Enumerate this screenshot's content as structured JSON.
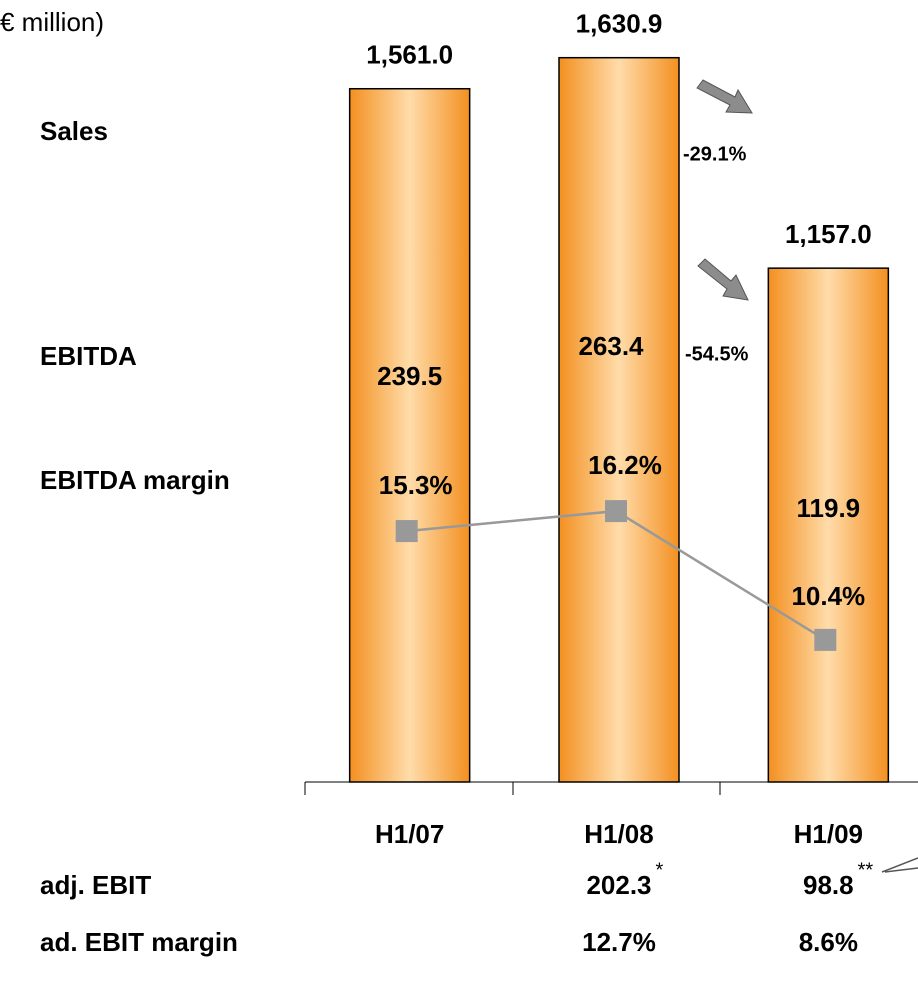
{
  "chart_data": {
    "type": "bar",
    "title": "€ million)",
    "categories": [
      "H1/07",
      "H1/08",
      "H1/09"
    ],
    "series": [
      {
        "name": "Sales",
        "color": "#f39a2a",
        "values": [
          1561.0,
          1630.9,
          1157.0
        ],
        "value_labels": [
          "1,561.0",
          "1,630.9",
          "1,157.0"
        ]
      },
      {
        "name": "EBITDA",
        "values": [
          239.5,
          263.4,
          119.9
        ]
      },
      {
        "name": "EBITDA margin",
        "color": "#999999",
        "axis": "y2",
        "values": [
          15.3,
          16.2,
          10.4
        ],
        "value_labels": [
          "15.3%",
          "16.2%",
          "10.4%"
        ]
      }
    ],
    "ylim": [
      0,
      1700
    ],
    "y2lim": [
      4,
      38
    ],
    "annotations": [
      "-29.1%",
      "-54.5%"
    ],
    "table": [
      {
        "label": "adj. EBIT",
        "values": [
          null,
          "202.3",
          "98.8"
        ],
        "notes": [
          null,
          "*",
          "**"
        ]
      },
      {
        "label": "ad. EBIT margin",
        "values": [
          null,
          "12.7%",
          "8.6%"
        ]
      }
    ]
  }
}
